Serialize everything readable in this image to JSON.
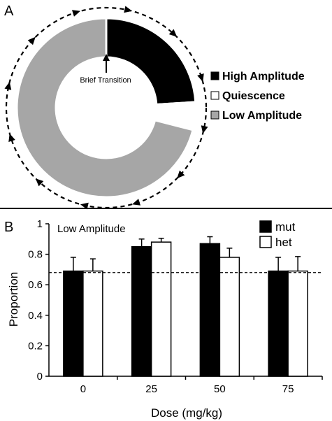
{
  "panels": {
    "a_label": "A",
    "b_label": "B"
  },
  "chart_data": [
    {
      "type": "pie",
      "style": "donut",
      "labels": [
        "High Amplitude",
        "Quiescence",
        "Low Amplitude"
      ],
      "values": [
        0.24,
        0.05,
        0.71
      ],
      "colors": [
        "#000000",
        "#ffffff",
        "#a6a6a6"
      ],
      "annotations": [
        "Brief Transition"
      ],
      "legend": "right"
    },
    {
      "type": "bar",
      "title": "Low Amplitude",
      "xlabel": "Dose (mg/kg)",
      "ylabel": "Proportion",
      "categories": [
        "0",
        "25",
        "50",
        "75"
      ],
      "series": [
        {
          "name": "mut",
          "color": "#000000",
          "values": [
            0.69,
            0.85,
            0.87,
            0.69
          ],
          "errors": [
            0.09,
            0.05,
            0.045,
            0.09
          ]
        },
        {
          "name": "het",
          "color": "#ffffff",
          "values": [
            0.69,
            0.88,
            0.78,
            0.69
          ],
          "errors": [
            0.08,
            0.025,
            0.06,
            0.095
          ]
        }
      ],
      "ylim": [
        0,
        1
      ],
      "yticks": [
        "0",
        "0.2",
        "0.4",
        "0.6",
        "0.8",
        "1"
      ],
      "reference_line": 0.68,
      "legend": "top-right"
    }
  ]
}
